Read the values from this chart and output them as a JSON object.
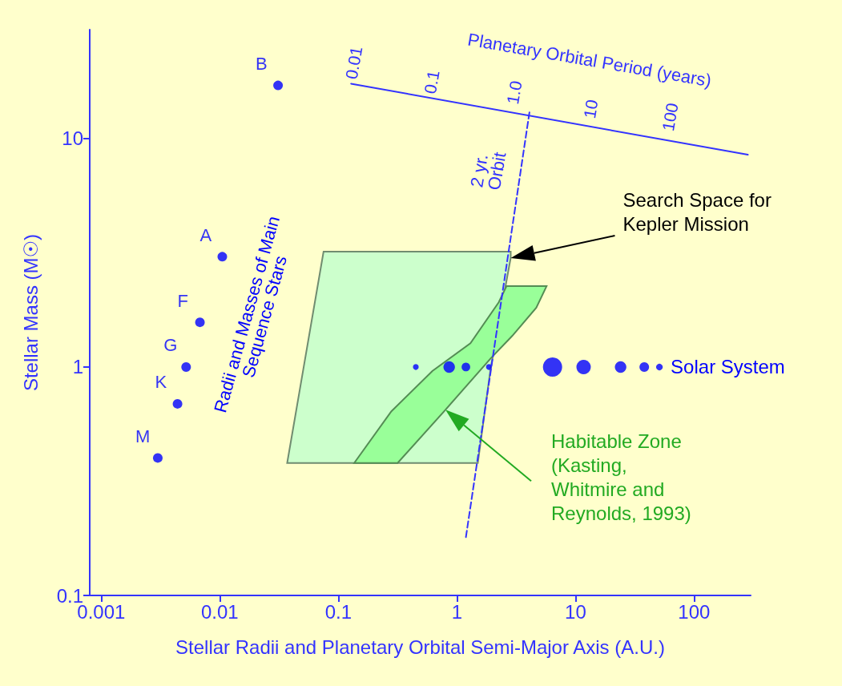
{
  "chart_data": {
    "type": "scatter",
    "xlabel": "Stellar Radii and Planetary Orbital Semi-Major Axis (A.U.)",
    "ylabel": "Stellar Mass (M☉)",
    "log": "xy",
    "xlim": [
      0.0008,
      300
    ],
    "xticks": [
      0.001,
      0.01,
      0.1,
      1,
      10,
      100
    ],
    "ylim": [
      0.1,
      30
    ],
    "yticks": [
      0.1,
      1,
      10
    ],
    "series": [
      {
        "type": "area",
        "color": "#ccffcc",
        "x": [
          0.037,
          0.075,
          2.84,
          2.84,
          2.6,
          1.92,
          1.5
        ],
        "values": [
          0.38,
          3.2,
          3.2,
          3.0,
          2.34,
          0.98,
          0.38
        ]
      },
      {
        "type": "area",
        "color": "#99ff99",
        "x": [
          0.136,
          0.28,
          0.62,
          1.3,
          2.25,
          2.62,
          5.7,
          4.67,
          2.93,
          1.92,
          0.8,
          0.316
        ],
        "values": [
          0.38,
          0.64,
          0.96,
          1.27,
          1.92,
          2.26,
          2.26,
          1.82,
          1.37,
          1.09,
          0.65,
          0.38
        ]
      },
      {
        "type": "line",
        "name": "2 yr. Orbit",
        "color": "#3333ff",
        "line_style": "dashed",
        "marker": "none",
        "x": [
          1.19,
          4.12
        ],
        "values": [
          0.18,
          13.4
        ]
      },
      {
        "type": "line",
        "color": "#3333ff",
        "line_style": "solid",
        "marker": "none",
        "x": [
          0.128,
          284
        ],
        "values": [
          17.4,
          8.5
        ]
      },
      {
        "name": "Radii and Masses of Main Sequence Stars",
        "marker": "circle",
        "color": "#0000ff",
        "x": [
          0.003,
          0.0044,
          0.0052,
          0.0068,
          0.0105,
          0.031
        ],
        "values": [
          0.4,
          0.69,
          1.0,
          1.57,
          3.04,
          17.1
        ],
        "value_labels": [
          "M",
          "K",
          "G",
          "F",
          "A",
          "B"
        ]
      },
      {
        "type": "bubble",
        "name": "Solar System",
        "marker": "circle",
        "color": "#0000ff",
        "x": [
          0.45,
          0.86,
          1.19,
          1.86,
          6.4,
          11.7,
          24,
          38,
          51
        ],
        "values": [
          1,
          1,
          1,
          1,
          1,
          1,
          1,
          1,
          1
        ],
        "sizes": [
          0.09,
          0.36,
          0.2,
          0.09,
          1,
          0.56,
          0.36,
          0.25,
          0.12
        ]
      }
    ],
    "annotations": [
      "Planetary Orbital Period (years)",
      {
        "text": "0.01",
        "x": 0.128,
        "y": 17.4
      },
      {
        "text": "0.1",
        "x": 0.59,
        "y": 15.0
      },
      {
        "text": "1.0",
        "x": 2.93,
        "y": 13.5
      },
      {
        "text": "10",
        "x": 13.0,
        "y": 11.7
      },
      {
        "text": "100",
        "x": 59.8,
        "y": 10.3
      },
      "Search Space for Kepler Mission",
      "Habitable Zone (Kasting, Whitmire and Reynolds, 1993)"
    ]
  }
}
